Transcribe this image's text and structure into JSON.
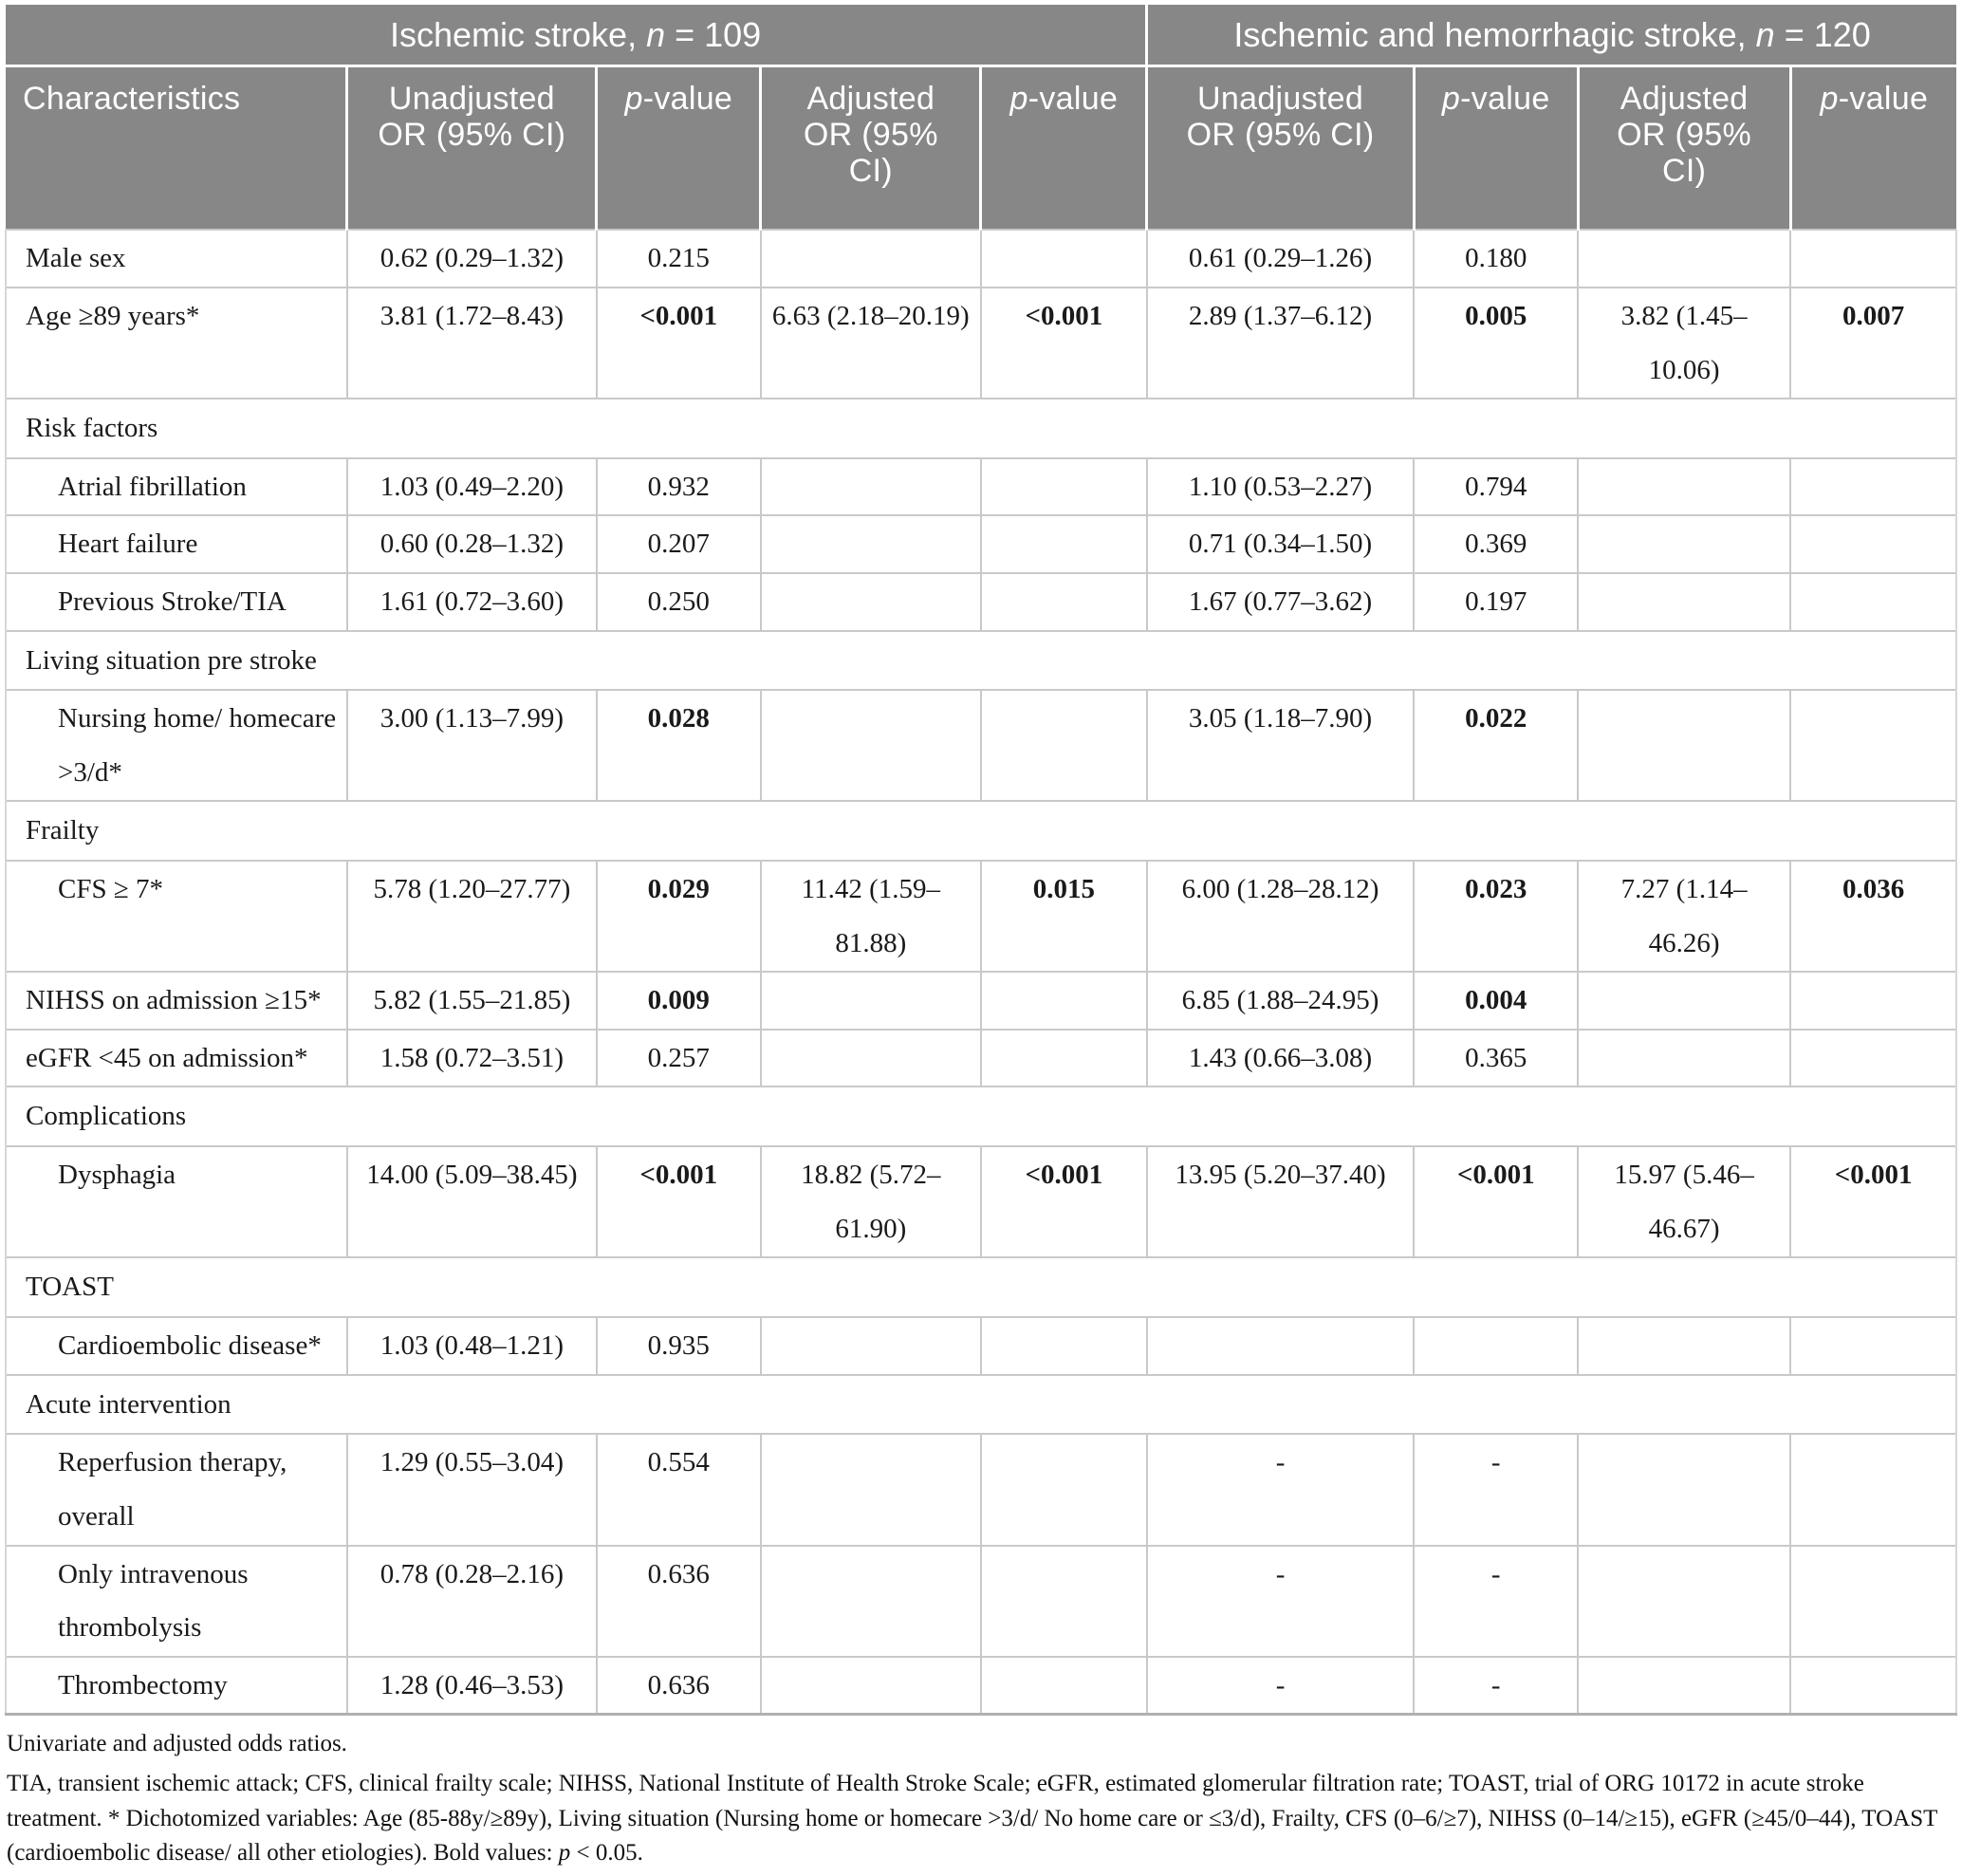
{
  "table": {
    "group_headers": [
      {
        "pre": "Ischemic stroke, ",
        "italic": "n",
        "post": " = 109",
        "colspan": 5
      },
      {
        "pre": "Ischemic and hemorrhagic stroke, ",
        "italic": "n",
        "post": " = 120",
        "colspan": 4
      }
    ],
    "columns": [
      {
        "key": "characteristics",
        "lines": [
          "Characteristics"
        ]
      },
      {
        "key": "unadjusted-or-ischemic",
        "lines": [
          "Unadjusted",
          "OR (95% CI)"
        ]
      },
      {
        "key": "p-value-unadjusted-ischemic",
        "italic_prefix": "p",
        "lines": [
          "-value"
        ]
      },
      {
        "key": "adjusted-or-ischemic",
        "lines": [
          "Adjusted",
          "OR (95%",
          "CI)"
        ]
      },
      {
        "key": "p-value-adjusted-ischemic",
        "italic_prefix": "p",
        "lines": [
          "-value"
        ]
      },
      {
        "key": "unadjusted-or-combined",
        "lines": [
          "Unadjusted",
          "OR (95% CI)"
        ]
      },
      {
        "key": "p-value-unadjusted-combined",
        "italic_prefix": "p",
        "lines": [
          "-value"
        ]
      },
      {
        "key": "adjusted-or-combined",
        "lines": [
          "Adjusted",
          "OR (95%",
          "CI)"
        ]
      },
      {
        "key": "p-value-adjusted-combined",
        "italic_prefix": "p",
        "lines": [
          "-value"
        ]
      }
    ],
    "column_widths": [
      "17.5%",
      "12.8%",
      "8.4%",
      "11.3%",
      "8.5%",
      "13.7%",
      "8.4%",
      "10.9%",
      "8.5%"
    ],
    "cell_keys": [
      "unadjusted-or-ischemic",
      "p-value-unadjusted-ischemic",
      "adjusted-or-ischemic",
      "p-value-adjusted-ischemic",
      "unadjusted-or-combined",
      "p-value-unadjusted-combined",
      "adjusted-or-combined",
      "p-value-adjusted-combined"
    ],
    "rows": [
      {
        "type": "data",
        "indent": false,
        "label": "Male sex",
        "cells": [
          {
            "t": "0.62 (0.29–1.32)"
          },
          {
            "t": "0.215"
          },
          {
            "t": ""
          },
          {
            "t": ""
          },
          {
            "t": "0.61 (0.29–1.26)"
          },
          {
            "t": "0.180"
          },
          {
            "t": ""
          },
          {
            "t": ""
          }
        ]
      },
      {
        "type": "data",
        "indent": false,
        "label": "Age ≥89 years*",
        "cells": [
          {
            "t": "3.81 (1.72–8.43)"
          },
          {
            "t": "<0.001",
            "bold": true
          },
          {
            "t": "6.63 (2.18–20.19)"
          },
          {
            "t": "<0.001",
            "bold": true
          },
          {
            "t": "2.89 (1.37–6.12)"
          },
          {
            "t": "0.005",
            "bold": true
          },
          {
            "t": "3.82 (1.45–10.06)"
          },
          {
            "t": "0.007",
            "bold": true
          }
        ]
      },
      {
        "type": "section",
        "label": "Risk factors"
      },
      {
        "type": "data",
        "indent": true,
        "label": "Atrial fibrillation",
        "cells": [
          {
            "t": "1.03 (0.49–2.20)"
          },
          {
            "t": "0.932"
          },
          {
            "t": ""
          },
          {
            "t": ""
          },
          {
            "t": "1.10 (0.53–2.27)"
          },
          {
            "t": "0.794"
          },
          {
            "t": ""
          },
          {
            "t": ""
          }
        ]
      },
      {
        "type": "data",
        "indent": true,
        "label": "Heart failure",
        "cells": [
          {
            "t": "0.60 (0.28–1.32)"
          },
          {
            "t": "0.207"
          },
          {
            "t": ""
          },
          {
            "t": ""
          },
          {
            "t": "0.71 (0.34–1.50)"
          },
          {
            "t": "0.369"
          },
          {
            "t": ""
          },
          {
            "t": ""
          }
        ]
      },
      {
        "type": "data",
        "indent": true,
        "label": "Previous Stroke/TIA",
        "cells": [
          {
            "t": "1.61 (0.72–3.60)"
          },
          {
            "t": "0.250"
          },
          {
            "t": ""
          },
          {
            "t": ""
          },
          {
            "t": "1.67 (0.77–3.62)"
          },
          {
            "t": "0.197"
          },
          {
            "t": ""
          },
          {
            "t": ""
          }
        ]
      },
      {
        "type": "section",
        "label": "Living situation pre stroke"
      },
      {
        "type": "data",
        "indent": true,
        "label": "Nursing home/ homecare >3/d*",
        "cells": [
          {
            "t": "3.00 (1.13–7.99)"
          },
          {
            "t": "0.028",
            "bold": true
          },
          {
            "t": ""
          },
          {
            "t": ""
          },
          {
            "t": "3.05 (1.18–7.90)"
          },
          {
            "t": "0.022",
            "bold": true
          },
          {
            "t": ""
          },
          {
            "t": ""
          }
        ]
      },
      {
        "type": "section",
        "label": "Frailty"
      },
      {
        "type": "data",
        "indent": true,
        "label": "CFS ≥ 7*",
        "cells": [
          {
            "t": "5.78 (1.20–27.77)"
          },
          {
            "t": "0.029",
            "bold": true
          },
          {
            "t": "11.42 (1.59–81.88)"
          },
          {
            "t": "0.015",
            "bold": true
          },
          {
            "t": "6.00 (1.28–28.12)"
          },
          {
            "t": "0.023",
            "bold": true
          },
          {
            "t": "7.27 (1.14–46.26)"
          },
          {
            "t": "0.036",
            "bold": true
          }
        ]
      },
      {
        "type": "data",
        "indent": false,
        "label": "NIHSS on admission ≥15*",
        "cells": [
          {
            "t": "5.82 (1.55–21.85)"
          },
          {
            "t": "0.009",
            "bold": true
          },
          {
            "t": ""
          },
          {
            "t": ""
          },
          {
            "t": "6.85 (1.88–24.95)"
          },
          {
            "t": "0.004",
            "bold": true
          },
          {
            "t": ""
          },
          {
            "t": ""
          }
        ]
      },
      {
        "type": "data",
        "indent": false,
        "label": "eGFR <45 on admission*",
        "cells": [
          {
            "t": "1.58 (0.72–3.51)"
          },
          {
            "t": "0.257"
          },
          {
            "t": ""
          },
          {
            "t": ""
          },
          {
            "t": "1.43 (0.66–3.08)"
          },
          {
            "t": "0.365"
          },
          {
            "t": ""
          },
          {
            "t": ""
          }
        ]
      },
      {
        "type": "section",
        "label": "Complications"
      },
      {
        "type": "data",
        "indent": true,
        "label": "Dysphagia",
        "cells": [
          {
            "t": "14.00 (5.09–38.45)"
          },
          {
            "t": "<0.001",
            "bold": true
          },
          {
            "t": "18.82 (5.72–61.90)"
          },
          {
            "t": "<0.001",
            "bold": true
          },
          {
            "t": "13.95 (5.20–37.40)"
          },
          {
            "t": "<0.001",
            "bold": true
          },
          {
            "t": "15.97 (5.46–46.67)"
          },
          {
            "t": "<0.001",
            "bold": true
          }
        ]
      },
      {
        "type": "section",
        "label": "TOAST"
      },
      {
        "type": "data",
        "indent": true,
        "label": "Cardioembolic disease*",
        "cells": [
          {
            "t": "1.03 (0.48–1.21)"
          },
          {
            "t": "0.935"
          },
          {
            "t": ""
          },
          {
            "t": ""
          },
          {
            "t": ""
          },
          {
            "t": ""
          },
          {
            "t": ""
          },
          {
            "t": ""
          }
        ]
      },
      {
        "type": "section",
        "label": "Acute intervention"
      },
      {
        "type": "data",
        "indent": true,
        "label": "Reperfusion therapy, overall",
        "cells": [
          {
            "t": "1.29 (0.55–3.04)"
          },
          {
            "t": "0.554"
          },
          {
            "t": ""
          },
          {
            "t": ""
          },
          {
            "t": "-"
          },
          {
            "t": "-"
          },
          {
            "t": ""
          },
          {
            "t": ""
          }
        ]
      },
      {
        "type": "data",
        "indent": true,
        "label": "Only intravenous thrombolysis",
        "cells": [
          {
            "t": "0.78 (0.28–2.16)"
          },
          {
            "t": "0.636"
          },
          {
            "t": ""
          },
          {
            "t": ""
          },
          {
            "t": "-"
          },
          {
            "t": "-"
          },
          {
            "t": ""
          },
          {
            "t": ""
          }
        ]
      },
      {
        "type": "data",
        "indent": true,
        "label": "Thrombectomy",
        "cells": [
          {
            "t": "1.28 (0.46–3.53)"
          },
          {
            "t": "0.636"
          },
          {
            "t": ""
          },
          {
            "t": ""
          },
          {
            "t": "-"
          },
          {
            "t": "-"
          },
          {
            "t": ""
          },
          {
            "t": ""
          }
        ]
      }
    ]
  },
  "footnotes": {
    "line1": "Univariate and adjusted odds ratios.",
    "abbreviations": "TIA, transient ischemic attack; CFS, clinical frailty scale; NIHSS, National Institute of Health Stroke Scale; eGFR, estimated glomerular filtration rate; TOAST, trial of ORG 10172 in acute stroke treatment. * Dichotomized variables: Age (85-88y/≥89y), Living situation (Nursing home or homecare >3/d/ No home care or ≤3/d), Frailty, CFS (0–6/≥7), NIHSS (0–14/≥15), eGFR (≥45/0–44), TOAST (cardioembolic disease/ all other etiologies). Bold values: ",
    "p_symbol": "p",
    "p_threshold": " < 0.05."
  },
  "colors": {
    "header_background": "#878787",
    "header_text": "#ffffff",
    "row_border": "#c9c9c9",
    "body_text": "#1a1a1a"
  }
}
